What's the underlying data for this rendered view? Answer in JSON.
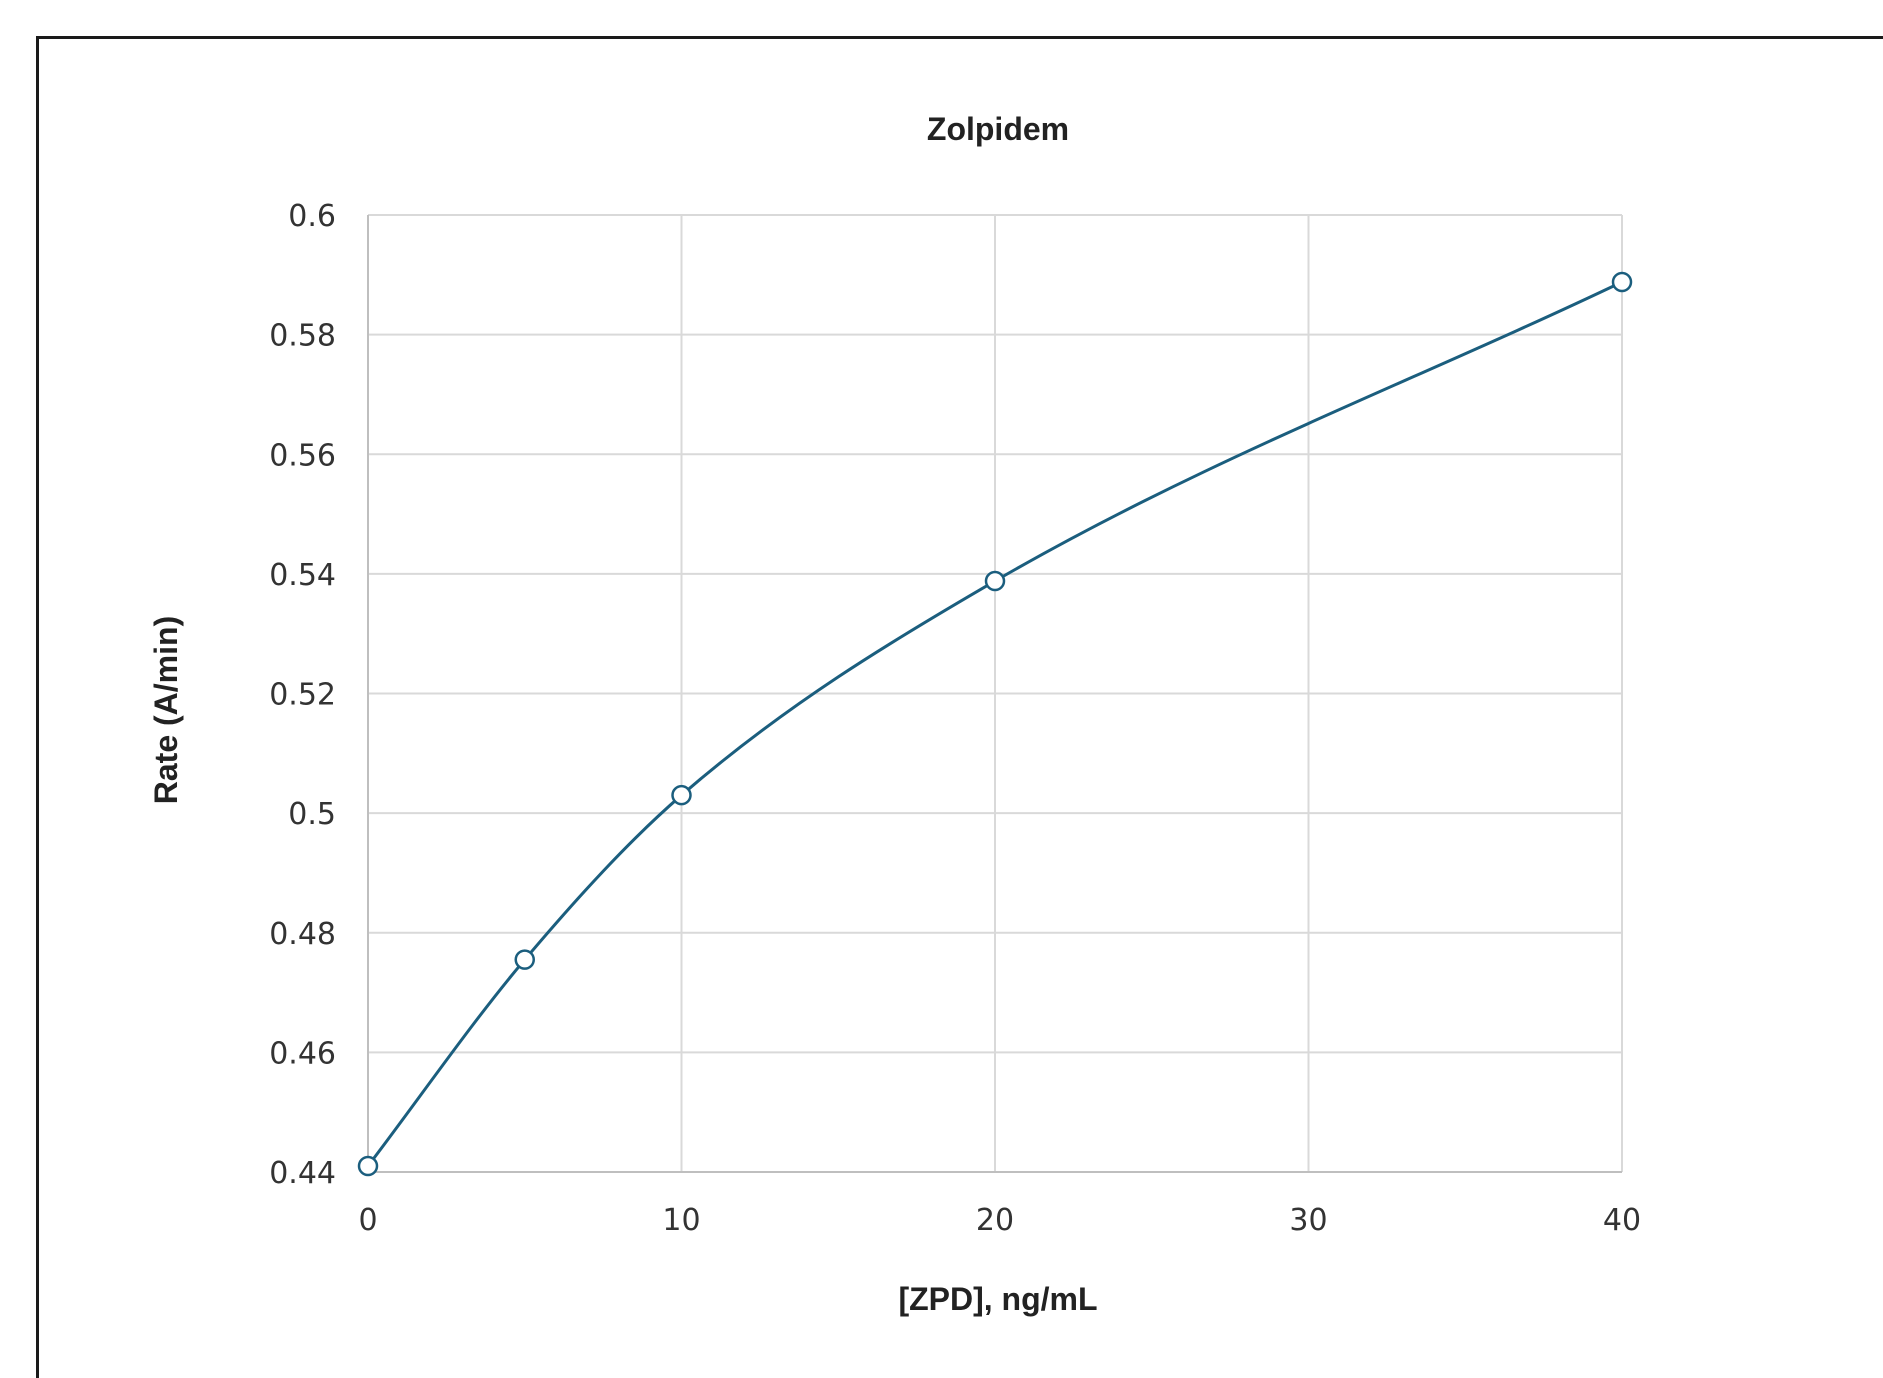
{
  "chart_data": {
    "type": "scatter",
    "title": "Zolpidem",
    "xlabel": "[ZPD], ng/mL",
    "ylabel": "Rate (A/min)",
    "xlim": [
      0,
      40
    ],
    "ylim": [
      0.44,
      0.6
    ],
    "x_ticks": [
      "0",
      "10",
      "20",
      "30",
      "40"
    ],
    "y_ticks": [
      "0.44",
      "0.46",
      "0.48",
      "0.5",
      "0.52",
      "0.54",
      "0.56",
      "0.58",
      "0.6"
    ],
    "grid": true,
    "legend": "none",
    "series": [
      {
        "x": [
          0,
          5,
          10,
          20,
          40
        ],
        "y": [
          0.441,
          0.4755,
          0.503,
          0.5388,
          0.5888
        ],
        "marker": "open-circle",
        "line": "smooth",
        "color": "#1b5e7e"
      }
    ]
  }
}
